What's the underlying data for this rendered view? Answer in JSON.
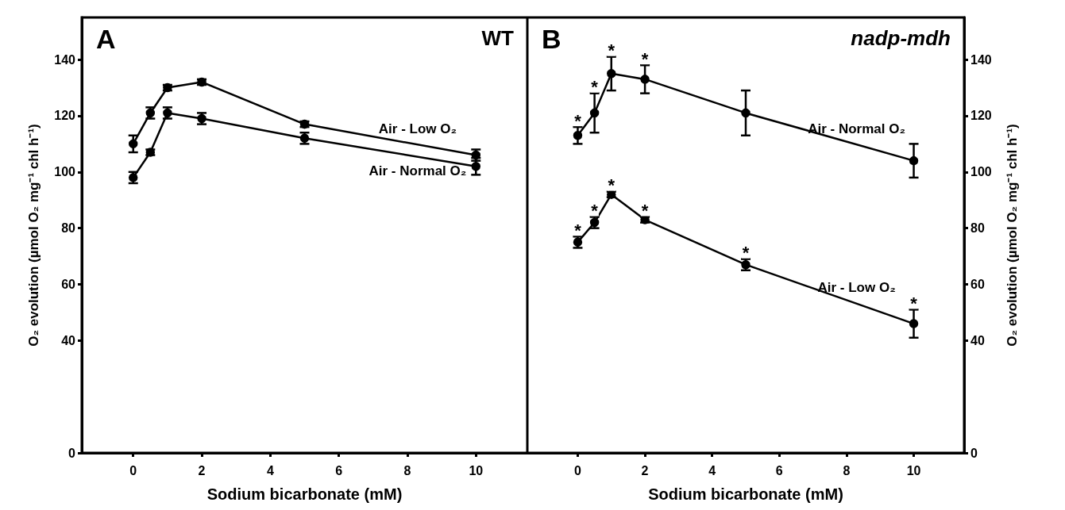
{
  "chart_data": [
    {
      "type": "line",
      "title": "WT",
      "xlabel": "Sodium bicarbonate (mM)",
      "ylabel": "O₂ evolution (µmol O₂ mg⁻¹ chl h⁻¹)",
      "annotations": [
        "A"
      ],
      "xlim": [
        -1.5,
        11.5
      ],
      "xticks": [
        0,
        2,
        4,
        6,
        8,
        10
      ],
      "ylim": [
        0,
        155
      ],
      "yticks": [
        0,
        40,
        60,
        80,
        100,
        120,
        140
      ],
      "grid": false,
      "legend": false,
      "marker": "circle",
      "line_style": "solid",
      "x": [
        0,
        0.5,
        1,
        2,
        5,
        10
      ],
      "series": [
        {
          "name": "Air - Low O₂",
          "color": "#000000",
          "values": [
            110,
            121,
            130,
            132,
            117,
            106
          ],
          "errors": [
            3,
            2,
            1,
            1,
            1,
            2
          ]
        },
        {
          "name": "Air - Normal O₂",
          "color": "#000000",
          "values": [
            98,
            107,
            121,
            119,
            112,
            102
          ],
          "errors": [
            2,
            1,
            2,
            2,
            2,
            3
          ]
        }
      ]
    },
    {
      "type": "line",
      "title": "nadp-mdh",
      "xlabel": "Sodium bicarbonate (mM)",
      "ylabel": "O₂ evolution (µmol O₂ mg⁻¹ chl h⁻¹)",
      "xlim": [
        -1.5,
        11.5
      ],
      "xticks": [
        0,
        2,
        4,
        6,
        8,
        10
      ],
      "ylim": [
        0,
        155
      ],
      "yticks": [
        0,
        40,
        60,
        80,
        100,
        120,
        140
      ],
      "grid": false,
      "legend": false,
      "marker": "circle",
      "line_style": "solid",
      "x": [
        0,
        0.5,
        1,
        2,
        5,
        10
      ],
      "annotations": [
        "B",
        {
          "text": "*",
          "x": 0,
          "y": 116
        },
        {
          "text": "*",
          "x": 0.5,
          "y": 128
        },
        {
          "text": "*",
          "x": 1,
          "y": 141
        },
        {
          "text": "*",
          "x": 2,
          "y": 138
        },
        {
          "text": "*",
          "x": 0,
          "y": 77
        },
        {
          "text": "*",
          "x": 0.5,
          "y": 84
        },
        {
          "text": "*",
          "x": 1,
          "y": 93
        },
        {
          "text": "*",
          "x": 2,
          "y": 84
        },
        {
          "text": "*",
          "x": 5,
          "y": 69
        },
        {
          "text": "*",
          "x": 10,
          "y": 51
        }
      ],
      "series": [
        {
          "name": "Air - Normal O₂",
          "color": "#000000",
          "values": [
            113,
            121,
            135,
            133,
            121,
            104
          ],
          "errors": [
            3,
            7,
            6,
            5,
            8,
            6
          ]
        },
        {
          "name": "Air - Low O₂",
          "color": "#000000",
          "values": [
            75,
            82,
            92,
            83,
            67,
            46
          ],
          "errors": [
            2,
            2,
            1,
            1,
            2,
            5
          ]
        }
      ]
    }
  ]
}
